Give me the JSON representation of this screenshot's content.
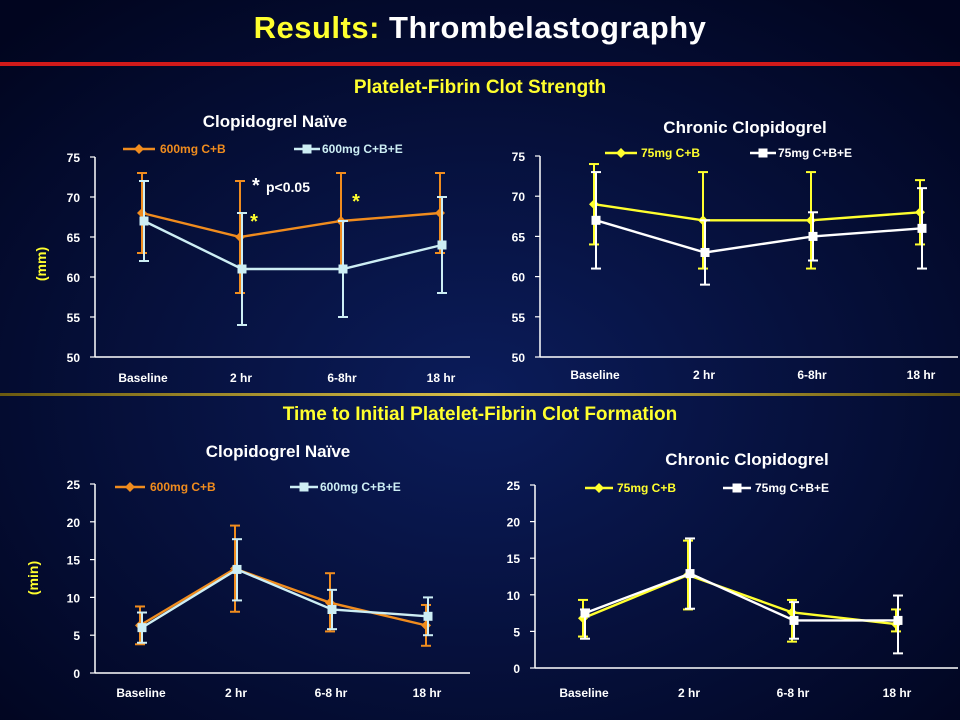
{
  "slide": {
    "title_accent": "Results:",
    "title_main": "Thrombelastography",
    "section_top": "Platelet-Fibrin Clot Strength",
    "section_bottom": "Time to Initial Platelet-Fibrin Clot Formation",
    "unit_top": "(mm)",
    "unit_bottom": "(min)",
    "significance_note": "p<0.05",
    "significance_marker": "*"
  },
  "colors": {
    "background": "#020a2e",
    "title_accent": "#ffff2e",
    "orange": "#f08c1e",
    "light_cyan": "#cdeef4",
    "yellow": "#ffff2e",
    "white": "#ffffff",
    "red_rule": "#d11a1a"
  },
  "chart_data": [
    {
      "id": "strength-naive",
      "type": "line",
      "title": "Clopidogrel Naïve",
      "categories": [
        "Baseline",
        "2 hr",
        "6-8hr",
        "18 hr"
      ],
      "ylim": [
        50,
        75
      ],
      "yticks": [
        50,
        55,
        60,
        65,
        70,
        75
      ],
      "legend": "top",
      "series": [
        {
          "name": "600mg C+B",
          "color": "#f08c1e",
          "marker": "diamond",
          "values": [
            68,
            65,
            67,
            68
          ],
          "err_low": [
            63,
            58,
            61,
            63
          ],
          "err_high": [
            73,
            72,
            73,
            73
          ]
        },
        {
          "name": "600mg C+B+E",
          "color": "#cdeef4",
          "marker": "square",
          "values": [
            67,
            61,
            61,
            64
          ],
          "err_low": [
            62,
            54,
            55,
            58
          ],
          "err_high": [
            72,
            68,
            67,
            70
          ]
        }
      ],
      "significant": [
        false,
        true,
        true,
        false
      ]
    },
    {
      "id": "strength-chronic",
      "type": "line",
      "title": "Chronic Clopidogrel",
      "categories": [
        "Baseline",
        "2 hr",
        "6-8hr",
        "18 hr"
      ],
      "ylim": [
        50,
        75
      ],
      "yticks": [
        50,
        55,
        60,
        65,
        70,
        75
      ],
      "legend": "top",
      "series": [
        {
          "name": "75mg C+B",
          "color": "#ffff2e",
          "marker": "diamond",
          "values": [
            69,
            67,
            67,
            68
          ],
          "err_low": [
            64,
            61,
            61,
            64
          ],
          "err_high": [
            74,
            73,
            73,
            72
          ]
        },
        {
          "name": "75mg C+B+E",
          "color": "#ffffff",
          "marker": "square",
          "values": [
            67,
            63,
            65,
            66
          ],
          "err_low": [
            61,
            59,
            62,
            61
          ],
          "err_high": [
            73,
            67,
            68,
            71
          ]
        }
      ]
    },
    {
      "id": "time-naive",
      "type": "line",
      "title": "Clopidogrel Naïve",
      "categories": [
        "Baseline",
        "2 hr",
        "6-8 hr",
        "18 hr"
      ],
      "ylim": [
        0,
        25
      ],
      "yticks": [
        0,
        5,
        10,
        15,
        20,
        25
      ],
      "legend": "top",
      "series": [
        {
          "name": "600mg C+B",
          "color": "#f08c1e",
          "marker": "diamond",
          "values": [
            6.3,
            13.8,
            9.3,
            6.3
          ],
          "err_low": [
            3.8,
            8.1,
            5.5,
            3.6
          ],
          "err_high": [
            8.8,
            19.5,
            13.2,
            9.0
          ]
        },
        {
          "name": "600mg C+B+E",
          "color": "#cdeef4",
          "marker": "square",
          "values": [
            6.0,
            13.7,
            8.4,
            7.5
          ],
          "err_low": [
            4.0,
            9.6,
            5.8,
            5.0
          ],
          "err_high": [
            8.0,
            17.7,
            11.0,
            10.0
          ]
        }
      ]
    },
    {
      "id": "time-chronic",
      "type": "line",
      "title": "Chronic Clopidogrel",
      "categories": [
        "Baseline",
        "2 hr",
        "6-8 hr",
        "18 hr"
      ],
      "ylim": [
        0,
        25
      ],
      "yticks": [
        0,
        5,
        10,
        15,
        20,
        25
      ],
      "legend": "top",
      "series": [
        {
          "name": "75mg C+B",
          "color": "#ffff2e",
          "marker": "diamond",
          "values": [
            6.8,
            12.7,
            7.6,
            6.0
          ],
          "err_low": [
            4.3,
            8.0,
            3.6,
            5.0
          ],
          "err_high": [
            9.3,
            17.4,
            9.3,
            8.0
          ]
        },
        {
          "name": "75mg C+B+E",
          "color": "#ffffff",
          "marker": "square",
          "values": [
            7.5,
            12.9,
            6.5,
            6.5
          ],
          "err_low": [
            4.0,
            8.1,
            4.0,
            2.0
          ],
          "err_high": [
            8.0,
            17.7,
            9.0,
            9.9
          ]
        }
      ]
    }
  ]
}
